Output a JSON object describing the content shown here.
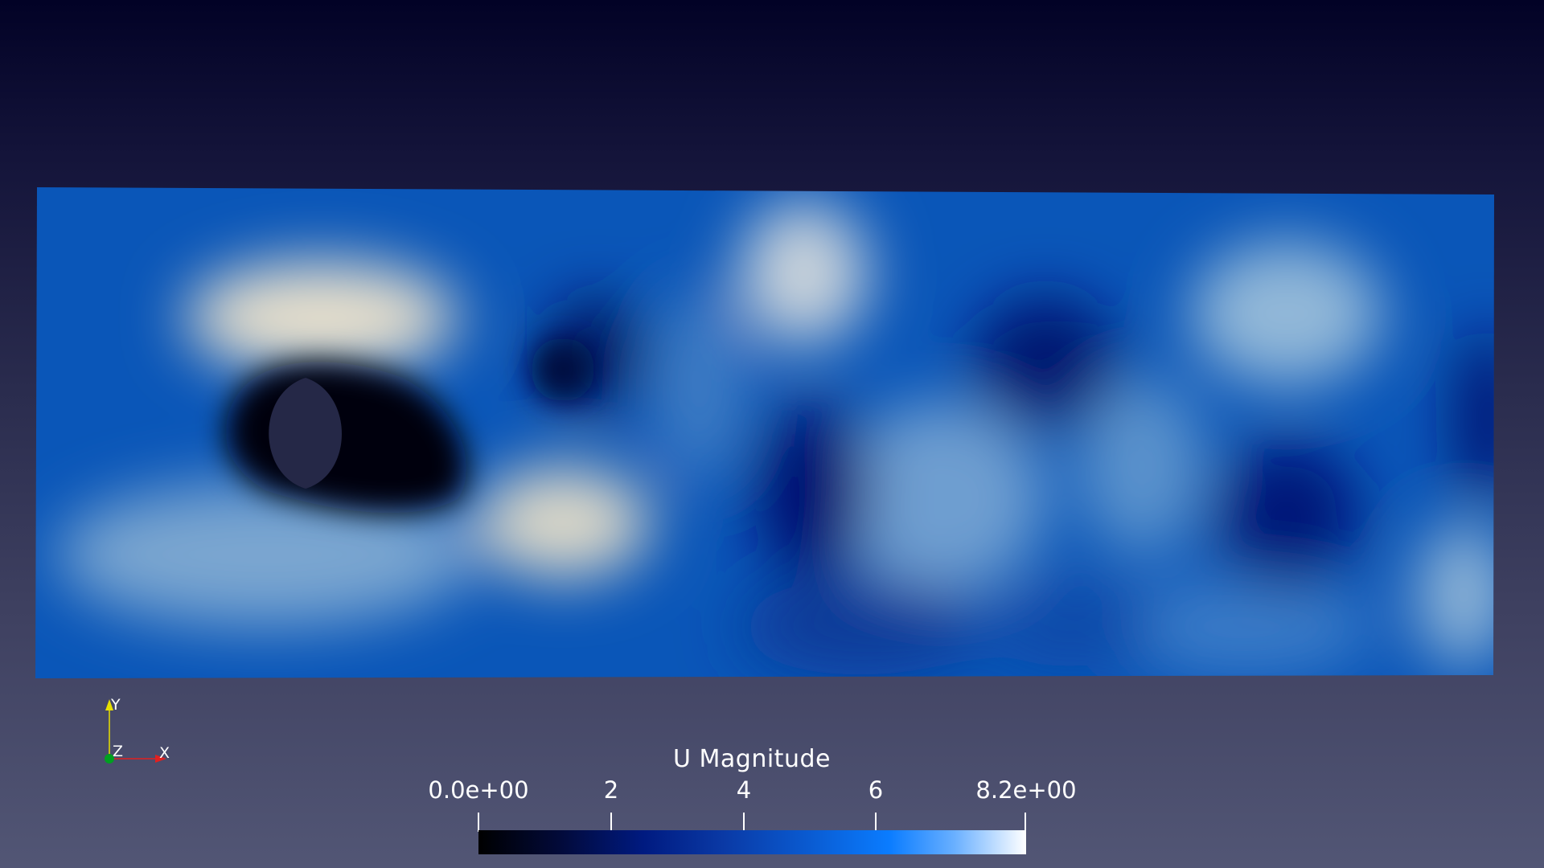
{
  "scalar_bar": {
    "title": "U Magnitude",
    "range": [
      0.0,
      8.2
    ],
    "tick_labels": [
      "0.0e+00",
      "2",
      "4",
      "6",
      "8.2e+00"
    ],
    "tick_values": [
      0,
      2,
      4,
      6,
      8.2
    ],
    "colormap_stops": [
      "#000000",
      "#001a80",
      "#0a7cff",
      "#ffffff"
    ]
  },
  "orientation_axes": {
    "y_label": "Y",
    "z_label": "Z",
    "x_label": "X",
    "y_color": "#e8e000",
    "x_color": "#e02020",
    "z_color": "#00a020"
  },
  "render": {
    "background_top": "#020226",
    "background_bottom": "#525675",
    "obstacle_color": "#252847"
  }
}
